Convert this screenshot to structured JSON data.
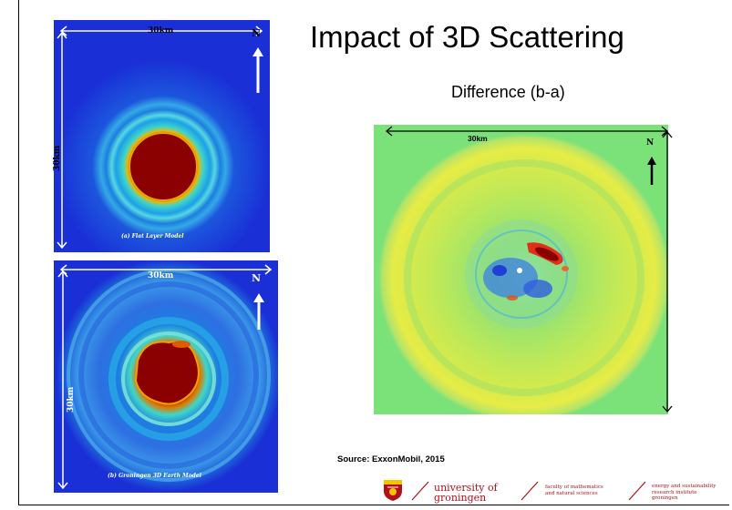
{
  "slide": {
    "title": "Impact of 3D Scattering",
    "subtitle": "Difference (b-a)",
    "source": "Source: ExxonMobil, 2015"
  },
  "panel_a": {
    "width_label": "30km",
    "height_label": "30km",
    "north_label": "N",
    "caption": "(a) Flat Layer Model"
  },
  "panel_b": {
    "width_label": "30km",
    "height_label": "30km",
    "north_label": "N",
    "caption": "(b) Groningen 3D Earth Model"
  },
  "panel_diff": {
    "width_label": "30km",
    "north_label": "N"
  },
  "footer": {
    "university_line1": "university of",
    "university_line2": "groningen",
    "faculty_line1": "faculty of mathematics",
    "faculty_line2": "and natural sciences",
    "institute_line1": "energy and sustainability",
    "institute_line2": "research institute",
    "institute_line3": "groningen"
  },
  "colors": {
    "map_blue": "#1a2fd6",
    "map_dark_red": "#8b0000",
    "diff_green": "#7be27a",
    "brand_red": "#b0101a"
  }
}
